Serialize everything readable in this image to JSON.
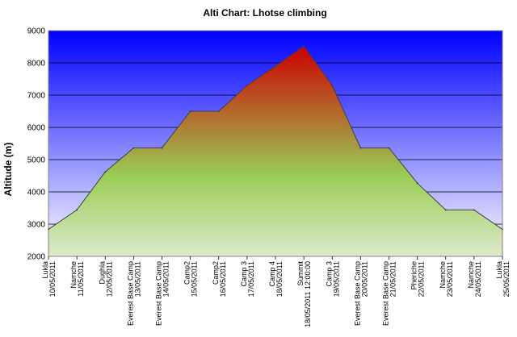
{
  "chart_data": {
    "type": "area",
    "title": "Alti Chart: Lhotse climbing",
    "xlabel": "",
    "ylabel": "Altitude (m)",
    "ylim": [
      2000,
      9000
    ],
    "yticks": [
      2000,
      3000,
      4000,
      5000,
      6000,
      7000,
      8000,
      9000
    ],
    "grid": true,
    "legend": "none",
    "colors": {
      "sky_top": "#0000ff",
      "sky_bottom": "#ffffff",
      "area_top": "#cc0000",
      "area_mid": "#9acd57",
      "area_bottom": "#dde9cc",
      "line": "#404040"
    },
    "points": [
      {
        "place": "Lukla",
        "date": "10/05/2011",
        "value": 2840
      },
      {
        "place": "Namche",
        "date": "11/05/2011",
        "value": 3440
      },
      {
        "place": "Dughla",
        "date": "12/05/2011",
        "value": 4620
      },
      {
        "place": "Everest Base Camp",
        "date": "13/05/2011",
        "value": 5364
      },
      {
        "place": "Everest Base Camp",
        "date": "14/05/2011",
        "value": 5364
      },
      {
        "place": "Camp2",
        "date": "15/05/2011",
        "value": 6500
      },
      {
        "place": "Camp2",
        "date": "16/05/2011",
        "value": 6500
      },
      {
        "place": "Camp 3",
        "date": "17/05/2011",
        "value": 7300
      },
      {
        "place": "Camp 4",
        "date": "18/05/2011",
        "value": 7900
      },
      {
        "place": "Summit",
        "date": "18/05/2011 12:00:00",
        "value": 8516
      },
      {
        "place": "Camp 3",
        "date": "19/05/2011",
        "value": 7300
      },
      {
        "place": "Everest Base Camp",
        "date": "20/05/2011",
        "value": 5364
      },
      {
        "place": "Everest Base Camp",
        "date": "21/05/2011",
        "value": 5364
      },
      {
        "place": "Pheriche",
        "date": "22/05/2011",
        "value": 4270
      },
      {
        "place": "Namche",
        "date": "23/05/2011",
        "value": 3440
      },
      {
        "place": "Namche",
        "date": "24/05/2011",
        "value": 3440
      },
      {
        "place": "Lukla",
        "date": "25/05/2011",
        "value": 2840
      }
    ]
  }
}
